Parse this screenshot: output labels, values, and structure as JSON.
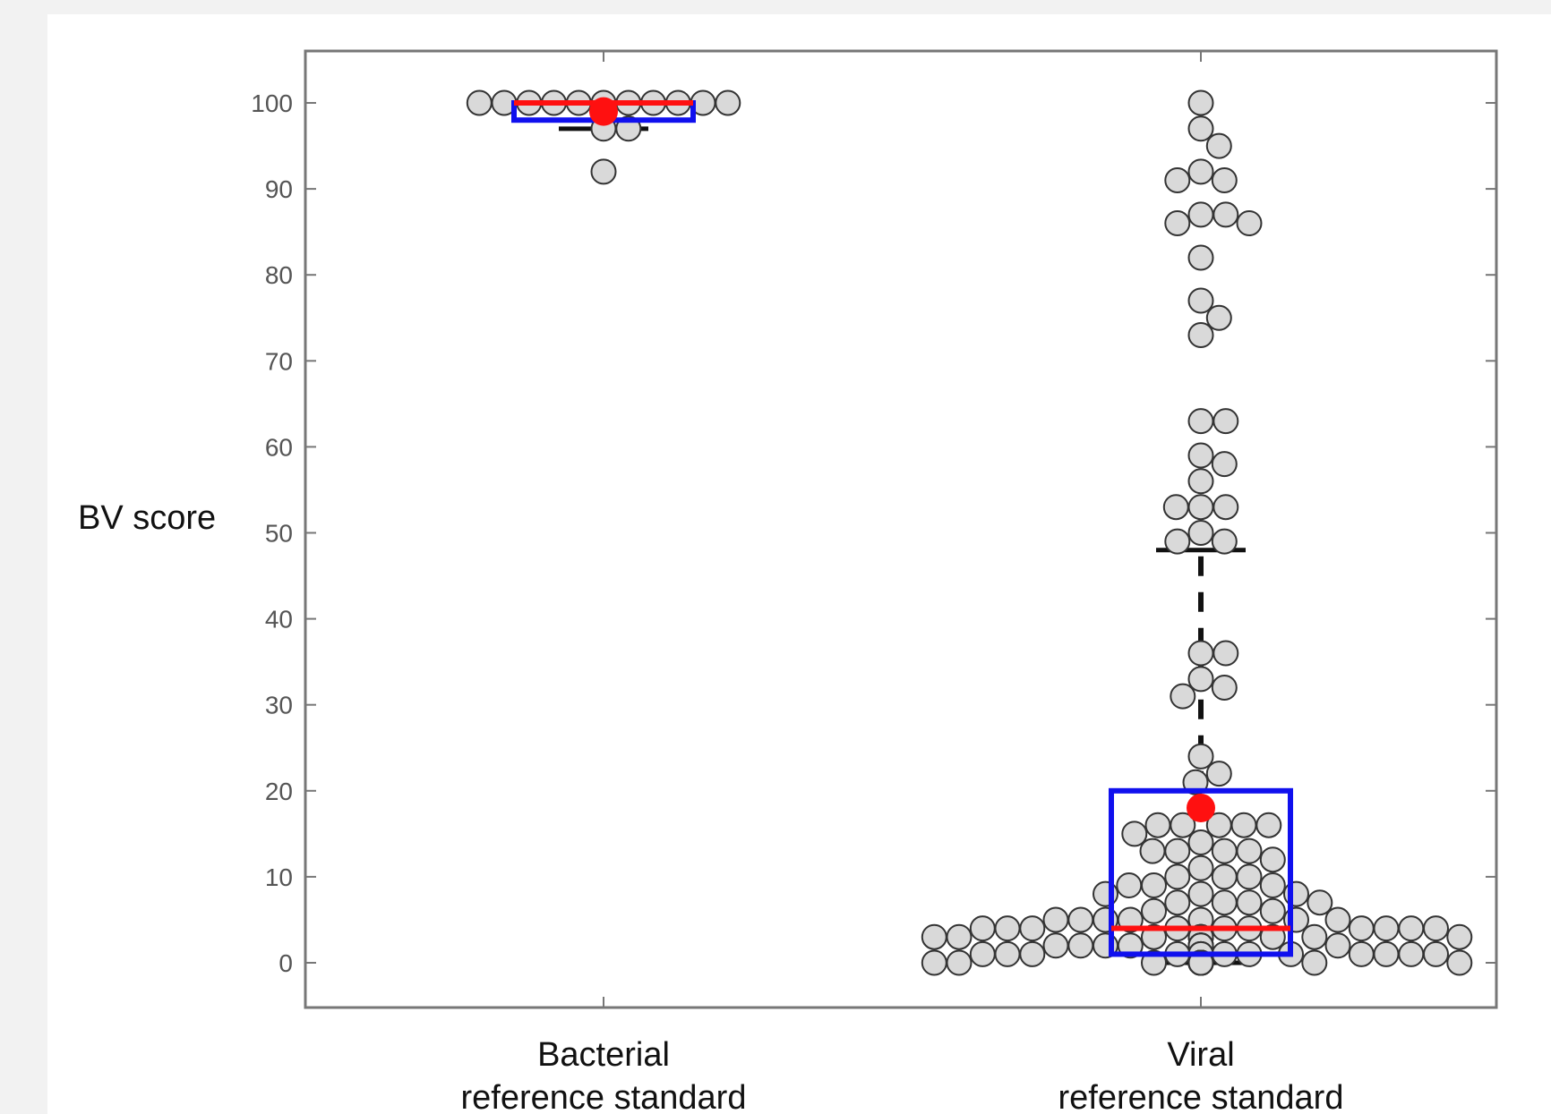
{
  "chart_data": {
    "type": "scatter",
    "subtype": "beeswarm-with-box",
    "ylabel": "BV score",
    "ylim": [
      -5,
      105
    ],
    "yticks": [
      0,
      10,
      20,
      30,
      40,
      50,
      60,
      70,
      80,
      90,
      100
    ],
    "grid": false,
    "colors": {
      "marker_fill": "#d9d9d9",
      "marker_edge": "#333333",
      "box": "#1010ee",
      "median": "#ff1010",
      "mean": "#ff1010",
      "whisker": "#111111",
      "frame": "#777777"
    },
    "groups": [
      {
        "category_lines": [
          "Bacterial",
          "reference standard"
        ],
        "values": [
          100,
          100,
          100,
          100,
          100,
          100,
          100,
          100,
          100,
          100,
          100,
          97,
          97,
          92
        ],
        "box": {
          "q1": 98,
          "median": 100,
          "q3": 100,
          "mean": 99,
          "whisker_low": 97,
          "whisker_high": 100
        }
      },
      {
        "category_lines": [
          "Viral",
          "reference standard"
        ],
        "values": [
          100,
          97,
          95,
          92,
          91,
          91,
          87,
          87,
          86,
          86,
          82,
          77,
          75,
          73,
          63,
          63,
          59,
          58,
          56,
          53,
          53,
          53,
          50,
          49,
          49,
          36,
          36,
          33,
          32,
          31,
          24,
          22,
          21,
          18,
          16,
          16,
          16,
          16,
          16,
          15,
          14,
          13,
          13,
          13,
          13,
          12,
          11,
          10,
          10,
          10,
          9,
          9,
          9,
          8,
          8,
          8,
          7,
          7,
          7,
          7,
          6,
          6,
          5,
          5,
          5,
          5,
          5,
          5,
          5,
          4,
          4,
          4,
          4,
          4,
          4,
          4,
          4,
          4,
          4,
          3,
          3,
          3,
          3,
          3,
          3,
          3,
          3,
          3,
          3,
          3,
          3,
          2,
          2,
          2,
          2,
          2,
          2,
          2,
          2,
          2,
          2,
          2,
          2,
          2,
          1,
          1,
          1,
          1,
          1,
          1,
          1,
          1,
          1,
          1,
          1,
          1,
          1,
          1,
          0,
          0,
          0,
          0,
          0,
          0,
          0,
          0,
          0,
          0,
          0,
          0,
          0,
          0,
          0,
          0,
          0,
          0,
          0,
          0,
          0,
          0,
          0,
          0,
          0,
          0,
          0,
          0,
          0,
          0,
          0,
          0,
          0,
          0,
          0,
          0,
          0,
          0,
          0,
          0,
          0,
          0,
          0,
          0,
          0,
          0,
          0
        ],
        "box": {
          "q1": 1,
          "median": 4,
          "q3": 20,
          "mean": 18,
          "whisker_low": 0,
          "whisker_high": 48
        }
      }
    ]
  }
}
